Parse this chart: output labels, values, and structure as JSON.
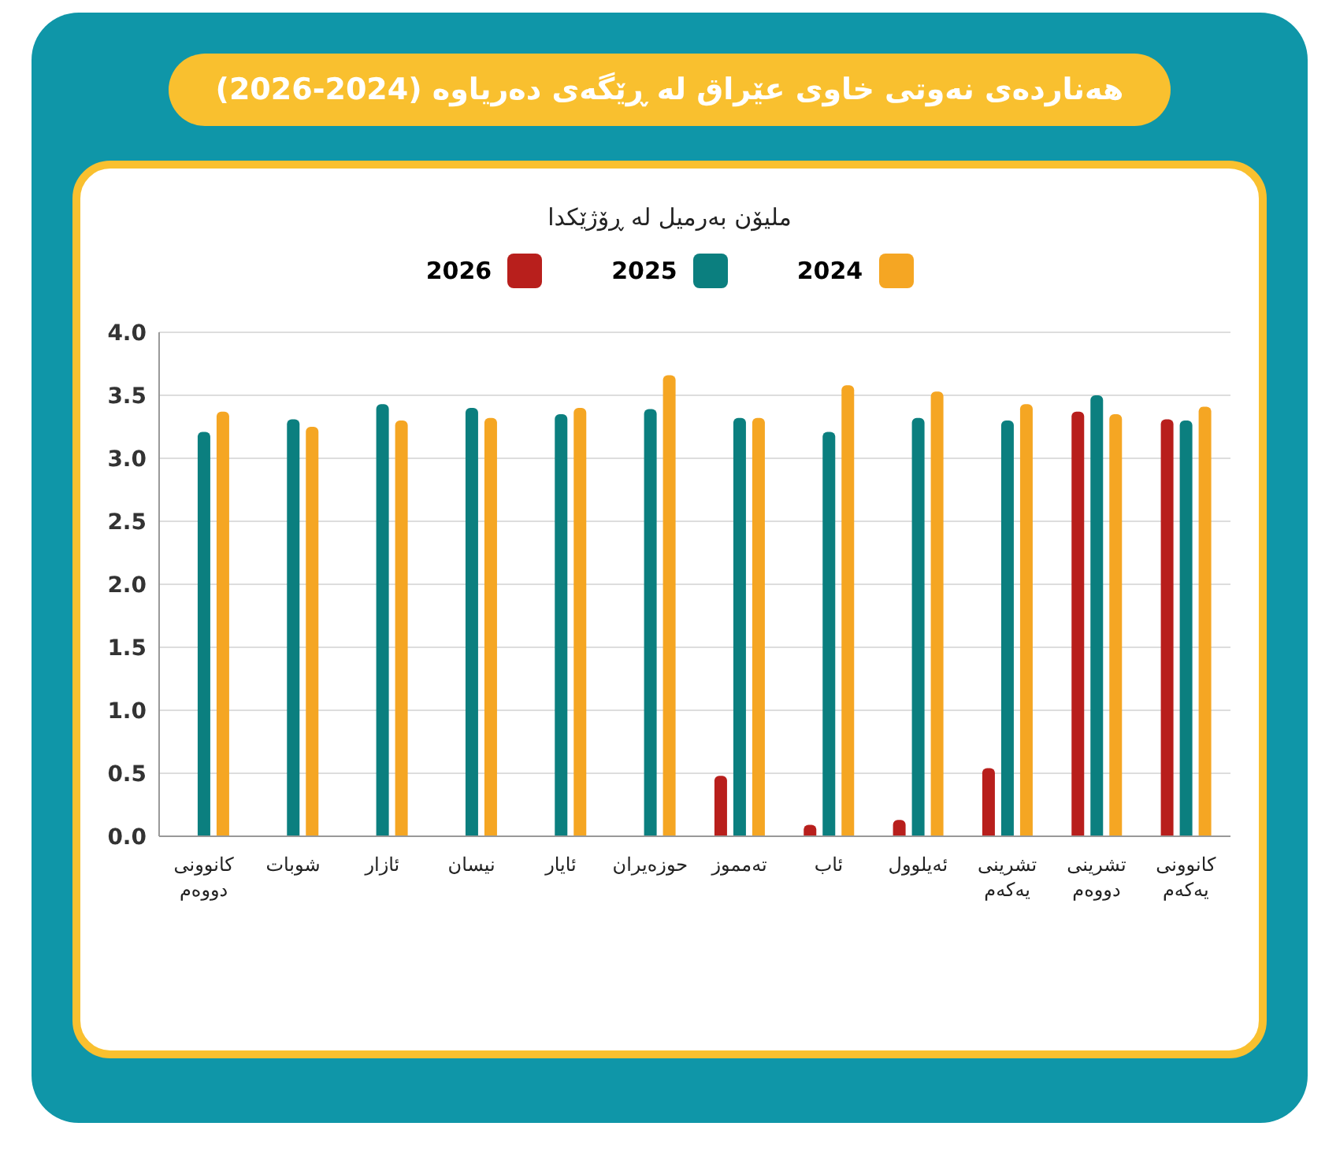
{
  "chart_data": {
    "type": "bar",
    "title": "هەناردەی نەوتی خاوی عێراق لە ڕێگەی دەریاوە (2024-2026)",
    "subtitle": "ملیۆن بەرمیل لە ڕۆژێکدا",
    "categories": [
      "کانوونی دووەم",
      "شوبات",
      "ئازار",
      "نیسان",
      "ئایار",
      "حوزەیران",
      "تەمموز",
      "ئاب",
      "ئەیلوول",
      "تشرینی یەکەم",
      "تشرینی دووەم",
      "کانوونی یەکەم"
    ],
    "series": [
      {
        "name": "2026",
        "color": "#b81f1c",
        "values": [
          null,
          null,
          null,
          null,
          null,
          null,
          0.48,
          0.09,
          0.13,
          0.54,
          3.37,
          3.31
        ]
      },
      {
        "name": "2025",
        "color": "#0b7f7f",
        "values": [
          3.21,
          3.31,
          3.43,
          3.4,
          3.35,
          3.39,
          3.32,
          3.21,
          3.32,
          3.3,
          3.5,
          3.3
        ]
      },
      {
        "name": "2024",
        "color": "#f5a623",
        "values": [
          3.37,
          3.25,
          3.3,
          3.32,
          3.4,
          3.66,
          3.32,
          3.58,
          3.53,
          3.43,
          3.35,
          3.41
        ]
      }
    ],
    "ylim": [
      0,
      4
    ],
    "yticks": [
      {
        "value": 0,
        "label": "0.0"
      },
      0.5,
      {
        "value": 1,
        "label": "1.0"
      },
      1.5,
      {
        "value": 2,
        "label": "2.0"
      },
      2.5,
      {
        "value": 3,
        "label": "3.0"
      },
      3.5,
      {
        "value": 4,
        "label": "4.0"
      }
    ],
    "grid": "y",
    "legend": "top"
  }
}
